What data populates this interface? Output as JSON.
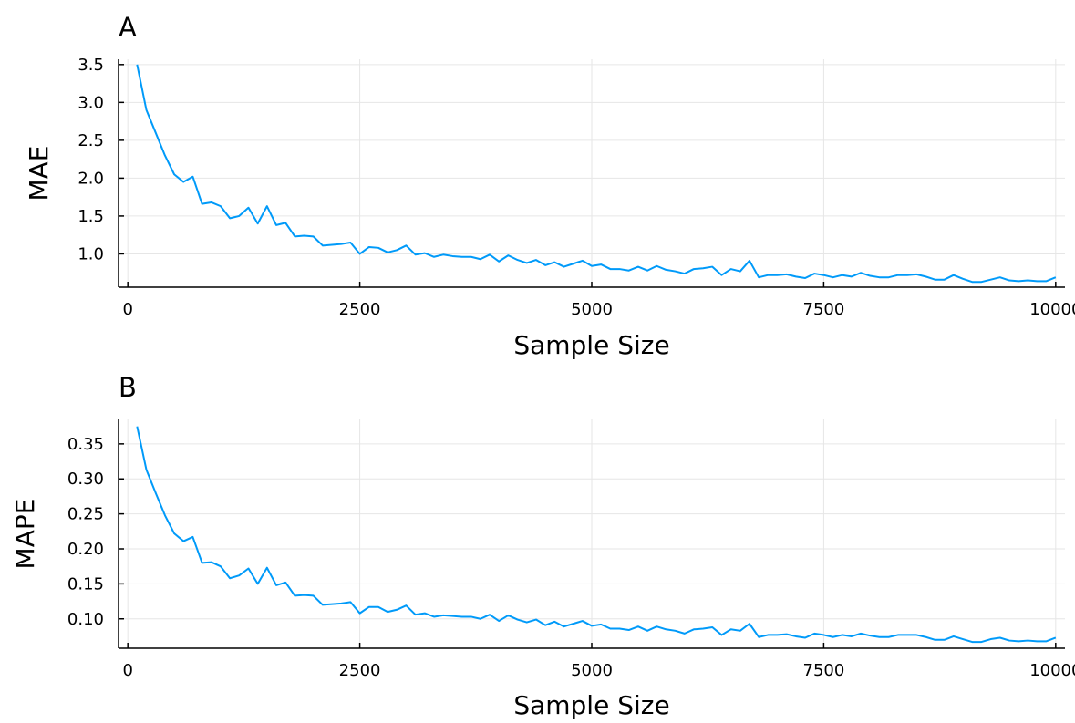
{
  "chart_data": [
    {
      "type": "line",
      "title": "A",
      "xlabel": "Sample Size",
      "ylabel": "MAE",
      "xlim": [
        -100,
        10100
      ],
      "ylim": [
        0.56,
        3.57
      ],
      "xticks": [
        0,
        2500,
        5000,
        7500,
        10000
      ],
      "xtick_labels": [
        "0",
        "2500",
        "5000",
        "7500",
        "10000"
      ],
      "yticks": [
        1.0,
        1.5,
        2.0,
        2.5,
        3.0,
        3.5
      ],
      "ytick_labels": [
        "1.0",
        "1.5",
        "2.0",
        "2.5",
        "3.0",
        "3.5"
      ],
      "grid": true,
      "legend": "none",
      "series_color": "#009af9",
      "x": [
        100,
        200,
        300,
        400,
        500,
        600,
        700,
        800,
        900,
        1000,
        1100,
        1200,
        1300,
        1400,
        1500,
        1600,
        1700,
        1800,
        1900,
        2000,
        2100,
        2200,
        2300,
        2400,
        2500,
        2600,
        2700,
        2800,
        2900,
        3000,
        3100,
        3200,
        3300,
        3400,
        3500,
        3600,
        3700,
        3800,
        3900,
        4000,
        4100,
        4200,
        4300,
        4400,
        4500,
        4600,
        4700,
        4800,
        4900,
        5000,
        5100,
        5200,
        5300,
        5400,
        5500,
        5600,
        5700,
        5800,
        5900,
        6000,
        6100,
        6200,
        6300,
        6400,
        6500,
        6600,
        6700,
        6800,
        6900,
        7000,
        7100,
        7200,
        7300,
        7400,
        7500,
        7600,
        7700,
        7800,
        7900,
        8000,
        8100,
        8200,
        8300,
        8400,
        8500,
        8600,
        8700,
        8800,
        8900,
        9000,
        9100,
        9200,
        9300,
        9400,
        9500,
        9600,
        9700,
        9800,
        9900,
        10000
      ],
      "series": [
        {
          "values": [
            3.5,
            2.9,
            2.6,
            2.3,
            2.05,
            1.95,
            2.02,
            1.66,
            1.68,
            1.63,
            1.47,
            1.5,
            1.61,
            1.4,
            1.63,
            1.38,
            1.41,
            1.23,
            1.24,
            1.23,
            1.11,
            1.12,
            1.13,
            1.15,
            1.0,
            1.09,
            1.08,
            1.02,
            1.05,
            1.11,
            0.99,
            1.01,
            0.96,
            0.99,
            0.97,
            0.96,
            0.96,
            0.93,
            0.99,
            0.9,
            0.98,
            0.92,
            0.88,
            0.92,
            0.85,
            0.89,
            0.83,
            0.87,
            0.91,
            0.84,
            0.86,
            0.8,
            0.8,
            0.78,
            0.83,
            0.78,
            0.84,
            0.79,
            0.77,
            0.74,
            0.8,
            0.81,
            0.83,
            0.72,
            0.8,
            0.77,
            0.91,
            0.69,
            0.72,
            0.72,
            0.73,
            0.7,
            0.68,
            0.74,
            0.72,
            0.69,
            0.72,
            0.7,
            0.75,
            0.71,
            0.69,
            0.69,
            0.72,
            0.72,
            0.73,
            0.7,
            0.66,
            0.66,
            0.72,
            0.67,
            0.63,
            0.63,
            0.66,
            0.69,
            0.65,
            0.64,
            0.65,
            0.64,
            0.64,
            0.69
          ]
        }
      ]
    },
    {
      "type": "line",
      "title": "B",
      "xlabel": "Sample Size",
      "ylabel": "MAPE",
      "xlim": [
        -100,
        10100
      ],
      "ylim": [
        0.058,
        0.385
      ],
      "xticks": [
        0,
        2500,
        5000,
        7500,
        10000
      ],
      "xtick_labels": [
        "0",
        "2500",
        "5000",
        "7500",
        "10000"
      ],
      "yticks": [
        0.1,
        0.15,
        0.2,
        0.25,
        0.3,
        0.35
      ],
      "ytick_labels": [
        "0.10",
        "0.15",
        "0.20",
        "0.25",
        "0.30",
        "0.35"
      ],
      "grid": true,
      "legend": "none",
      "series_color": "#009af9",
      "x": [
        100,
        200,
        300,
        400,
        500,
        600,
        700,
        800,
        900,
        1000,
        1100,
        1200,
        1300,
        1400,
        1500,
        1600,
        1700,
        1800,
        1900,
        2000,
        2100,
        2200,
        2300,
        2400,
        2500,
        2600,
        2700,
        2800,
        2900,
        3000,
        3100,
        3200,
        3300,
        3400,
        3500,
        3600,
        3700,
        3800,
        3900,
        4000,
        4100,
        4200,
        4300,
        4400,
        4500,
        4600,
        4700,
        4800,
        4900,
        5000,
        5100,
        5200,
        5300,
        5400,
        5500,
        5600,
        5700,
        5800,
        5900,
        6000,
        6100,
        6200,
        6300,
        6400,
        6500,
        6600,
        6700,
        6800,
        6900,
        7000,
        7100,
        7200,
        7300,
        7400,
        7500,
        7600,
        7700,
        7800,
        7900,
        8000,
        8100,
        8200,
        8300,
        8400,
        8500,
        8600,
        8700,
        8800,
        8900,
        9000,
        9100,
        9200,
        9300,
        9400,
        9500,
        9600,
        9700,
        9800,
        9900,
        10000
      ],
      "series": [
        {
          "values": [
            0.375,
            0.313,
            0.28,
            0.248,
            0.222,
            0.211,
            0.217,
            0.18,
            0.181,
            0.175,
            0.158,
            0.162,
            0.172,
            0.15,
            0.173,
            0.148,
            0.152,
            0.133,
            0.134,
            0.133,
            0.12,
            0.121,
            0.122,
            0.124,
            0.108,
            0.117,
            0.117,
            0.11,
            0.113,
            0.119,
            0.106,
            0.108,
            0.103,
            0.105,
            0.104,
            0.103,
            0.103,
            0.1,
            0.106,
            0.097,
            0.105,
            0.099,
            0.095,
            0.099,
            0.091,
            0.096,
            0.089,
            0.093,
            0.097,
            0.09,
            0.092,
            0.086,
            0.086,
            0.084,
            0.089,
            0.083,
            0.089,
            0.085,
            0.083,
            0.079,
            0.085,
            0.086,
            0.088,
            0.077,
            0.085,
            0.083,
            0.093,
            0.074,
            0.077,
            0.077,
            0.078,
            0.075,
            0.073,
            0.079,
            0.077,
            0.074,
            0.077,
            0.075,
            0.079,
            0.076,
            0.074,
            0.074,
            0.077,
            0.077,
            0.077,
            0.074,
            0.07,
            0.07,
            0.075,
            0.071,
            0.067,
            0.067,
            0.071,
            0.073,
            0.069,
            0.068,
            0.069,
            0.068,
            0.068,
            0.073
          ]
        }
      ]
    }
  ]
}
